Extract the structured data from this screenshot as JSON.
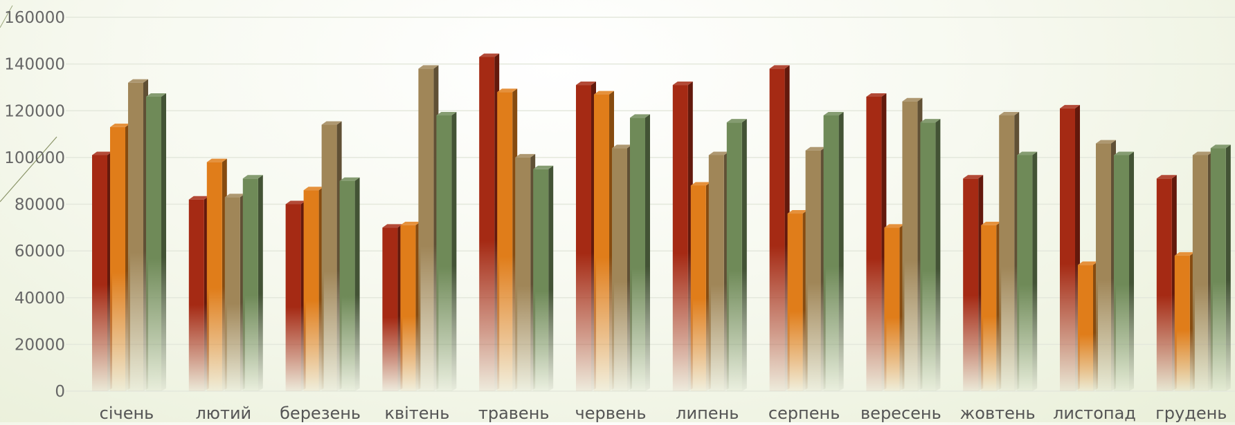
{
  "chart_data": {
    "type": "bar",
    "title": "",
    "xlabel": "",
    "ylabel": "",
    "ylim": [
      0,
      160000
    ],
    "yticks": [
      0,
      20000,
      40000,
      60000,
      80000,
      100000,
      120000,
      140000,
      160000
    ],
    "grid": true,
    "legend": "none",
    "categories": [
      "січень",
      "лютий",
      "березень",
      "квітень",
      "травень",
      "червень",
      "липень",
      "серпень",
      "вересень",
      "жовтень",
      "листопад",
      "грудень"
    ],
    "series": [
      {
        "color": "#a52a14",
        "values": [
          101000,
          82000,
          80000,
          70000,
          143000,
          131000,
          131000,
          138000,
          126000,
          91000,
          121000,
          91000
        ]
      },
      {
        "color": "#e07d1a",
        "values": [
          113000,
          98000,
          86000,
          71000,
          128000,
          127000,
          88000,
          76000,
          70000,
          71000,
          54000,
          58000
        ]
      },
      {
        "color": "#a08658",
        "values": [
          132000,
          83000,
          114000,
          138000,
          100000,
          104000,
          101000,
          103000,
          124000,
          118000,
          106000,
          101000
        ]
      },
      {
        "color": "#6f8a58",
        "values": [
          126000,
          91000,
          90000,
          118000,
          95000,
          117000,
          115000,
          118000,
          115000,
          101000,
          101000,
          104000
        ]
      }
    ]
  }
}
